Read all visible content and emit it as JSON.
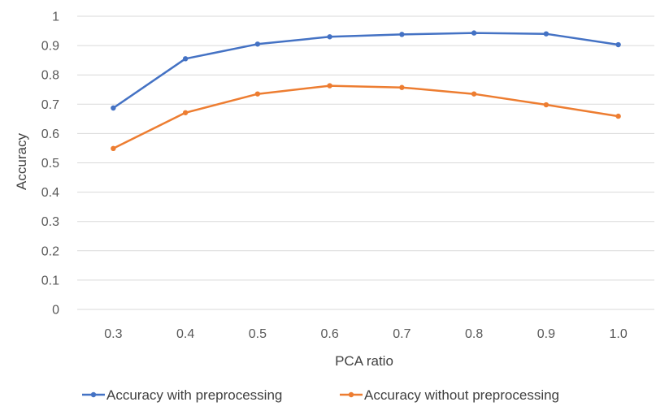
{
  "chart_data": {
    "type": "line",
    "title": "",
    "xlabel": "PCA ratio",
    "ylabel": "Accuracy",
    "categories": [
      "0.3",
      "0.4",
      "0.5",
      "0.6",
      "0.7",
      "0.8",
      "0.9",
      "1.0"
    ],
    "ylim": [
      0,
      1
    ],
    "yticks": [
      "0",
      "0.1",
      "0.2",
      "0.3",
      "0.4",
      "0.5",
      "0.6",
      "0.7",
      "0.8",
      "0.9",
      "1"
    ],
    "grid": true,
    "legend_position": "bottom",
    "series": [
      {
        "name": "Accuracy with preprocessing",
        "color": "#4472c4",
        "values": [
          0.687,
          0.855,
          0.905,
          0.93,
          0.938,
          0.943,
          0.94,
          0.903
        ]
      },
      {
        "name": "Accuracy without preprocessing",
        "color": "#ed7d31",
        "values": [
          0.549,
          0.671,
          0.735,
          0.763,
          0.757,
          0.735,
          0.698,
          0.659
        ]
      }
    ]
  }
}
